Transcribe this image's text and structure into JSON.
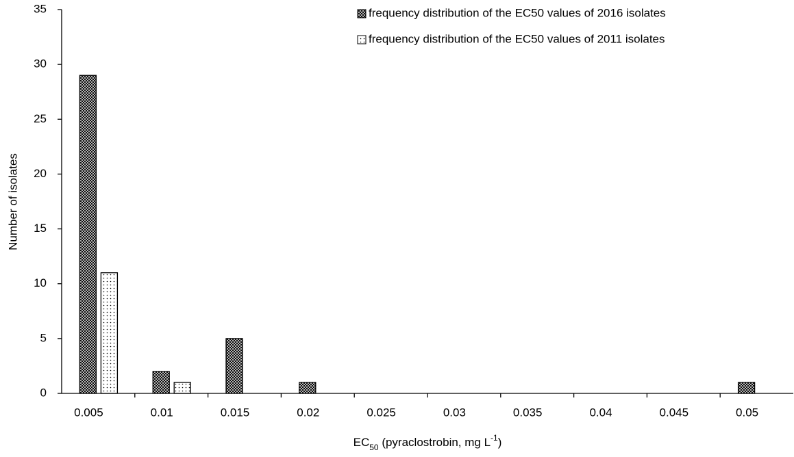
{
  "chart_data": {
    "type": "bar",
    "ylabel": "Number of isolates",
    "xlabel_parts": [
      "EC",
      "50",
      " (pyraclostrobin, mg L",
      "-1",
      ")"
    ],
    "categories": [
      "0.005",
      "0.01",
      "0.015",
      "0.02",
      "0.025",
      "0.03",
      "0.035",
      "0.04",
      "0.045",
      "0.05"
    ],
    "series": [
      {
        "name": "frequency distribution of the EC50 values of 2016 isolates",
        "pattern": "crosshatch",
        "values": [
          29,
          2,
          5,
          1,
          0,
          0,
          0,
          0,
          0,
          1
        ]
      },
      {
        "name": "frequency distribution of the EC50 values of 2011 isolates",
        "pattern": "dots",
        "values": [
          11,
          1,
          0,
          0,
          0,
          0,
          0,
          0,
          0,
          0
        ]
      }
    ],
    "ylim": [
      0,
      35
    ],
    "yticks": [
      0,
      5,
      10,
      15,
      20,
      25,
      30,
      35
    ],
    "grid": false,
    "legend": "top-right"
  }
}
